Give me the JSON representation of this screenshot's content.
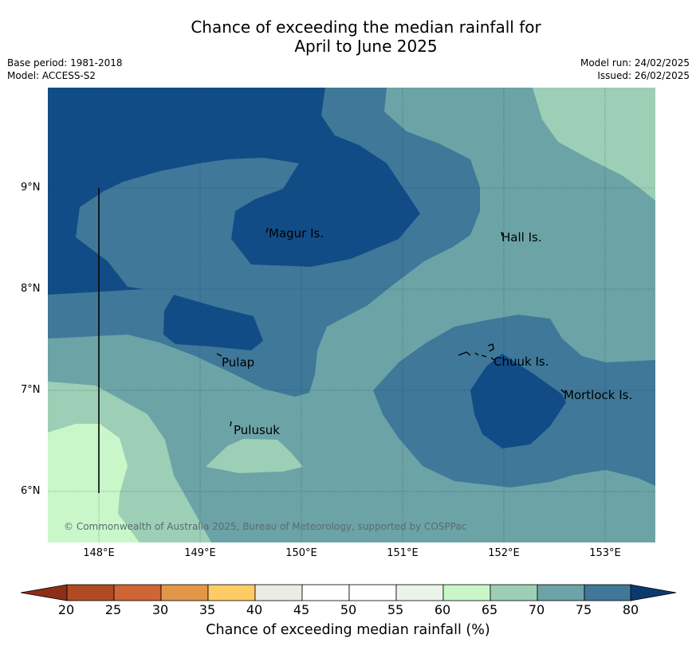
{
  "title_line1": "Chance of exceeding the median rainfall for",
  "title_line2": "April to June 2025",
  "meta": {
    "base_period": "Base period: 1981-2018",
    "model": "Model: ACCESS-S2",
    "model_run": "Model run: 24/02/2025",
    "issued": "Issued: 26/02/2025"
  },
  "map": {
    "lon_ticks": [
      "148°E",
      "149°E",
      "150°E",
      "151°E",
      "152°E",
      "153°E"
    ],
    "lat_ticks": [
      "9°N",
      "8°N",
      "7°N",
      "6°N"
    ],
    "places": [
      "Magur Is.",
      "Hall Is.",
      "Pulap",
      "Chuuk Is.",
      "Mortlock Is.",
      "Pulusuk"
    ],
    "copyright": "© Commonwealth of Australia 2025, Bureau of Meteorology, supported by COSPPac"
  },
  "colorbar": {
    "label": "Chance of exceeding median rainfall (%)",
    "ticks": [
      "20",
      "25",
      "30",
      "35",
      "40",
      "45",
      "50",
      "55",
      "60",
      "65",
      "70",
      "75",
      "80"
    ],
    "colors": [
      "#b14a23",
      "#cd6534",
      "#e29748",
      "#fecb65",
      "#ecebe6",
      "#ffffff",
      "#ffffff",
      "#eaf4ea",
      "#c9f7c9",
      "#9ccfb5",
      "#6ca3a6",
      "#3f7899",
      "#124c87"
    ],
    "below_color": "#8c2e18",
    "above_color": "#0d3a6e"
  }
}
